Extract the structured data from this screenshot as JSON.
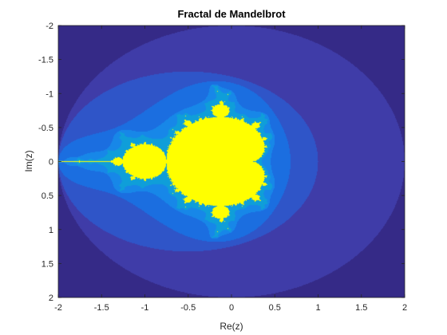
{
  "chart_data": {
    "type": "heatmap",
    "title": "Fractal de Mandelbrot",
    "xlabel": "Re(z)",
    "ylabel": "Im(z)",
    "xlim": [
      -2,
      2
    ],
    "ylim": [
      -2,
      2
    ],
    "y_direction": "reversed",
    "x_ticks": [
      -2,
      -1.5,
      -1,
      -0.5,
      0,
      0.5,
      1,
      1.5,
      2
    ],
    "x_tick_labels": [
      "-2",
      "-1.5",
      "-1",
      "-0.5",
      "0",
      "0.5",
      "1",
      "1.5",
      "2"
    ],
    "y_ticks": [
      -2,
      -1.5,
      -1,
      -0.5,
      0,
      0.5,
      1,
      1.5,
      2
    ],
    "y_tick_labels": [
      "-2",
      "-1.5",
      "-1",
      "-0.5",
      "0",
      "0.5",
      "1",
      "1.5",
      "2"
    ],
    "grid": false,
    "colormap": [
      "#352a87",
      "#3f3ca8",
      "#2f55c8",
      "#1b6ee0",
      "#1787e8",
      "#0f9ed9",
      "#ffff00"
    ],
    "inside_color": "#ffff00"
  }
}
